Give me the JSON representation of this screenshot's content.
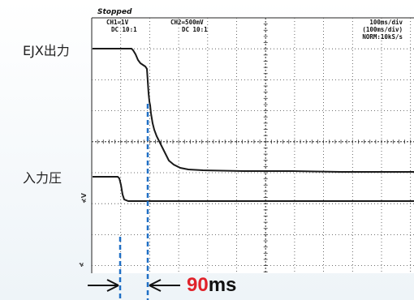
{
  "labels": {
    "output_signal": "EJX出力",
    "input_pressure": "入力圧"
  },
  "scope": {
    "status": "Stopped",
    "ch1_line1": "CH1=1V",
    "ch1_line2": "DC  10:1",
    "ch2_line1": "CH2=500mV",
    "ch2_line2": "DC  10:1",
    "timebase_line1": "100ms/div",
    "timebase_line2": "(100ms/div)",
    "timebase_line3": "NORM:10kS/s",
    "ground_marker_1": "≮V",
    "ground_marker_2": "≮"
  },
  "delay": {
    "value": "90",
    "unit": "ms"
  },
  "colors": {
    "trace": "#1a1a1a",
    "grid": "#444444",
    "marker": "#1f6fc5",
    "delay_value": "#e0222a"
  }
}
